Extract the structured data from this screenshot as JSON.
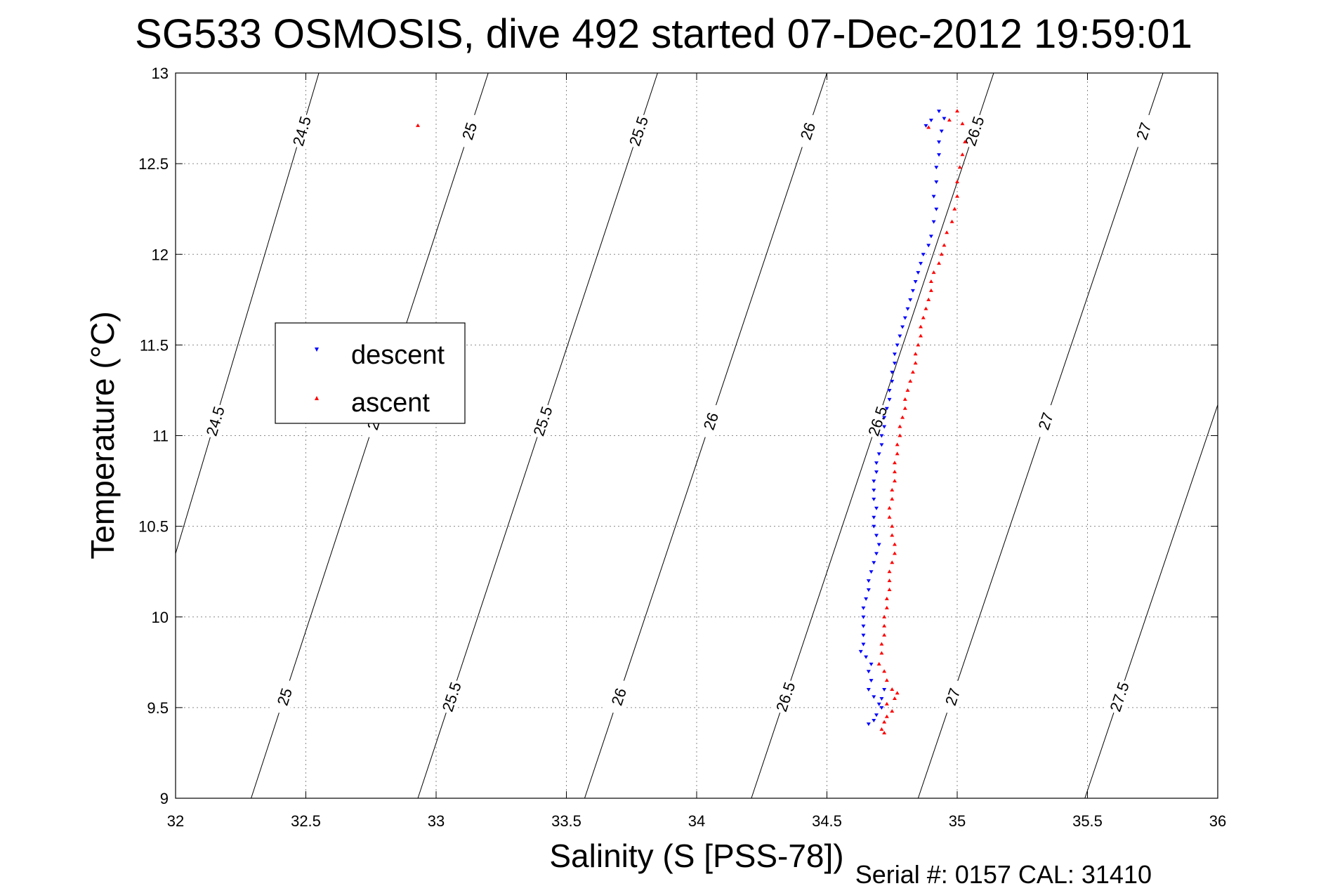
{
  "chart_data": {
    "type": "scatter",
    "title": "SG533 OSMOSIS, dive 492 started 07-Dec-2012 19:59:01",
    "xlabel": "Salinity (S [PSS-78])",
    "ylabel": "Temperature (°C)",
    "xlim": [
      32,
      36
    ],
    "ylim": [
      9,
      13
    ],
    "x_ticks": [
      32,
      32.5,
      33,
      33.5,
      34,
      34.5,
      35,
      35.5,
      36
    ],
    "x_tick_labels": [
      "32",
      "32.5",
      "33",
      "33.5",
      "34",
      "34.5",
      "35",
      "35.5",
      "36"
    ],
    "y_ticks": [
      9,
      9.5,
      10,
      10.5,
      11,
      11.5,
      12,
      12.5,
      13
    ],
    "y_tick_labels": [
      "9",
      "9.5",
      "10",
      "10.5",
      "11",
      "11.5",
      "12",
      "12.5",
      "13"
    ],
    "grid": true,
    "legend_position": "left",
    "footer": "Serial #: 0157  CAL: 31410",
    "density_contours": [
      {
        "sigma": 24.5,
        "x_at_tmin": 31.72,
        "x_at_tmax": 32.55,
        "label": "24.5"
      },
      {
        "sigma": 25.0,
        "x_at_tmin": 32.29,
        "x_at_tmax": 33.2,
        "label": "25"
      },
      {
        "sigma": 25.5,
        "x_at_tmin": 32.93,
        "x_at_tmax": 33.85,
        "label": "25.5"
      },
      {
        "sigma": 26.0,
        "x_at_tmin": 33.57,
        "x_at_tmax": 34.5,
        "label": "26"
      },
      {
        "sigma": 26.5,
        "x_at_tmin": 34.21,
        "x_at_tmax": 35.14,
        "label": "26.5"
      },
      {
        "sigma": 27.0,
        "x_at_tmin": 34.85,
        "x_at_tmax": 35.79,
        "label": "27"
      },
      {
        "sigma": 27.5,
        "x_at_tmin": 35.49,
        "x_at_tmax": 36.43,
        "label": "27.5"
      }
    ],
    "series": [
      {
        "name": "descent",
        "color": "#0000ff",
        "marker": "triangle-down",
        "points": [
          [
            34.88,
            12.71
          ],
          [
            34.9,
            12.74
          ],
          [
            34.93,
            12.79
          ],
          [
            34.95,
            12.75
          ],
          [
            34.94,
            12.68
          ],
          [
            34.93,
            12.62
          ],
          [
            34.93,
            12.55
          ],
          [
            34.92,
            12.48
          ],
          [
            34.92,
            12.4
          ],
          [
            34.91,
            12.32
          ],
          [
            34.92,
            12.25
          ],
          [
            34.91,
            12.18
          ],
          [
            34.9,
            12.1
          ],
          [
            34.89,
            12.05
          ],
          [
            34.87,
            12.0
          ],
          [
            34.86,
            11.95
          ],
          [
            34.85,
            11.9
          ],
          [
            34.84,
            11.85
          ],
          [
            34.83,
            11.8
          ],
          [
            34.82,
            11.75
          ],
          [
            34.81,
            11.7
          ],
          [
            34.8,
            11.65
          ],
          [
            34.79,
            11.6
          ],
          [
            34.78,
            11.55
          ],
          [
            34.77,
            11.5
          ],
          [
            34.76,
            11.45
          ],
          [
            34.76,
            11.4
          ],
          [
            34.75,
            11.35
          ],
          [
            34.75,
            11.3
          ],
          [
            34.74,
            11.25
          ],
          [
            34.74,
            11.2
          ],
          [
            34.73,
            11.15
          ],
          [
            34.72,
            11.1
          ],
          [
            34.72,
            11.05
          ],
          [
            34.71,
            11.0
          ],
          [
            34.71,
            10.95
          ],
          [
            34.7,
            10.9
          ],
          [
            34.69,
            10.85
          ],
          [
            34.69,
            10.8
          ],
          [
            34.68,
            10.75
          ],
          [
            34.68,
            10.7
          ],
          [
            34.68,
            10.65
          ],
          [
            34.69,
            10.6
          ],
          [
            34.68,
            10.55
          ],
          [
            34.68,
            10.5
          ],
          [
            34.69,
            10.45
          ],
          [
            34.7,
            10.4
          ],
          [
            34.69,
            10.35
          ],
          [
            34.68,
            10.3
          ],
          [
            34.67,
            10.25
          ],
          [
            34.66,
            10.2
          ],
          [
            34.66,
            10.15
          ],
          [
            34.65,
            10.1
          ],
          [
            34.64,
            10.05
          ],
          [
            34.64,
            10.0
          ],
          [
            34.64,
            9.95
          ],
          [
            34.64,
            9.9
          ],
          [
            34.64,
            9.85
          ],
          [
            34.63,
            9.81
          ],
          [
            34.65,
            9.78
          ],
          [
            34.67,
            9.74
          ],
          [
            34.66,
            9.7
          ],
          [
            34.67,
            9.65
          ],
          [
            34.66,
            9.6
          ],
          [
            34.68,
            9.56
          ],
          [
            34.7,
            9.52
          ],
          [
            34.71,
            9.5
          ],
          [
            34.69,
            9.46
          ],
          [
            34.68,
            9.43
          ],
          [
            34.66,
            9.41
          ],
          [
            34.71,
            9.55
          ],
          [
            34.72,
            9.6
          ]
        ]
      },
      {
        "name": "ascent",
        "color": "#ff0000",
        "marker": "triangle-up",
        "points": [
          [
            32.93,
            12.71
          ],
          [
            34.89,
            12.7
          ],
          [
            34.97,
            12.74
          ],
          [
            35.0,
            12.79
          ],
          [
            35.02,
            12.72
          ],
          [
            35.03,
            12.62
          ],
          [
            35.02,
            12.55
          ],
          [
            35.01,
            12.48
          ],
          [
            35.0,
            12.4
          ],
          [
            35.0,
            12.32
          ],
          [
            34.99,
            12.25
          ],
          [
            34.98,
            12.18
          ],
          [
            34.96,
            12.12
          ],
          [
            34.95,
            12.05
          ],
          [
            34.94,
            12.0
          ],
          [
            34.93,
            11.95
          ],
          [
            34.91,
            11.9
          ],
          [
            34.9,
            11.85
          ],
          [
            34.9,
            11.8
          ],
          [
            34.89,
            11.75
          ],
          [
            34.88,
            11.7
          ],
          [
            34.87,
            11.65
          ],
          [
            34.86,
            11.6
          ],
          [
            34.86,
            11.55
          ],
          [
            34.85,
            11.5
          ],
          [
            34.84,
            11.45
          ],
          [
            34.84,
            11.4
          ],
          [
            34.83,
            11.35
          ],
          [
            34.82,
            11.3
          ],
          [
            34.81,
            11.25
          ],
          [
            34.8,
            11.2
          ],
          [
            34.8,
            11.15
          ],
          [
            34.79,
            11.1
          ],
          [
            34.78,
            11.05
          ],
          [
            34.78,
            11.0
          ],
          [
            34.77,
            10.95
          ],
          [
            34.77,
            10.9
          ],
          [
            34.76,
            10.85
          ],
          [
            34.76,
            10.8
          ],
          [
            34.76,
            10.75
          ],
          [
            34.75,
            10.7
          ],
          [
            34.75,
            10.65
          ],
          [
            34.74,
            10.6
          ],
          [
            34.74,
            10.55
          ],
          [
            34.75,
            10.5
          ],
          [
            34.75,
            10.45
          ],
          [
            34.76,
            10.4
          ],
          [
            34.76,
            10.35
          ],
          [
            34.75,
            10.3
          ],
          [
            34.74,
            10.25
          ],
          [
            34.74,
            10.2
          ],
          [
            34.74,
            10.15
          ],
          [
            34.73,
            10.1
          ],
          [
            34.73,
            10.05
          ],
          [
            34.72,
            10.0
          ],
          [
            34.72,
            9.95
          ],
          [
            34.72,
            9.9
          ],
          [
            34.71,
            9.85
          ],
          [
            34.71,
            9.8
          ],
          [
            34.7,
            9.74
          ],
          [
            34.72,
            9.7
          ],
          [
            34.73,
            9.65
          ],
          [
            34.75,
            9.6
          ],
          [
            34.77,
            9.58
          ],
          [
            34.76,
            9.55
          ],
          [
            34.73,
            9.52
          ],
          [
            34.75,
            9.48
          ],
          [
            34.73,
            9.45
          ],
          [
            34.72,
            9.42
          ],
          [
            34.71,
            9.38
          ],
          [
            34.72,
            9.36
          ]
        ]
      }
    ]
  }
}
